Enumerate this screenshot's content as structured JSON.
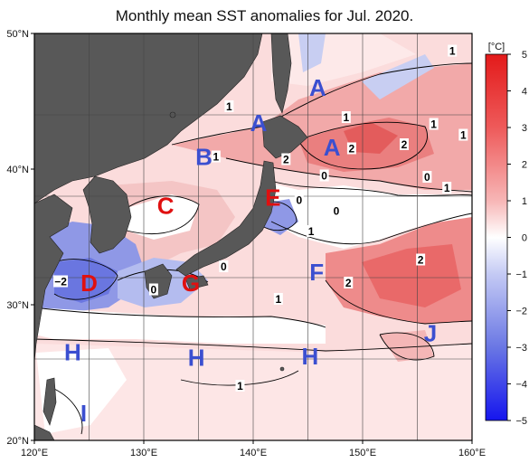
{
  "title": "Monthly mean SST anomalies for Jul. 2020.",
  "colorbar": {
    "unit": "[°C]",
    "ticks": [
      "5",
      "4",
      "3",
      "2",
      "1",
      "0",
      "−1",
      "−2",
      "−3",
      "−4",
      "−5"
    ],
    "values": [
      5,
      4,
      3,
      2,
      1,
      0,
      -1,
      -2,
      -3,
      -4,
      -5
    ],
    "warm_color": "#e02525",
    "cold_color": "#1a1aee"
  },
  "axes": {
    "lon_labels": [
      "120°E",
      "130°E",
      "140°E",
      "150°E",
      "160°E"
    ],
    "lon_values": [
      120,
      130,
      140,
      150,
      160
    ],
    "lat_labels": [
      "50°N",
      "40°N",
      "30°N",
      "20°N"
    ],
    "lat_values": [
      50,
      40,
      30,
      20
    ]
  },
  "regions": [
    {
      "letter": "A",
      "lon": 140.5,
      "lat": 43.4,
      "color": "#3b4fd0"
    },
    {
      "letter": "A",
      "lon": 145.9,
      "lat": 46.0,
      "color": "#3b4fd0"
    },
    {
      "letter": "A",
      "lon": 147.2,
      "lat": 41.6,
      "color": "#3b4fd0"
    },
    {
      "letter": "B",
      "lon": 135.5,
      "lat": 40.9,
      "color": "#3b4fd0"
    },
    {
      "letter": "C",
      "lon": 132.0,
      "lat": 37.3,
      "color": "#e01010"
    },
    {
      "letter": "D",
      "lon": 125.0,
      "lat": 31.6,
      "color": "#e01010"
    },
    {
      "letter": "E",
      "lon": 141.8,
      "lat": 37.9,
      "color": "#e01010"
    },
    {
      "letter": "F",
      "lon": 145.8,
      "lat": 32.4,
      "color": "#3b4fd0"
    },
    {
      "letter": "G",
      "lon": 134.3,
      "lat": 31.6,
      "color": "#e01010"
    },
    {
      "letter": "H",
      "lon": 123.5,
      "lat": 26.5,
      "color": "#3b4fd0"
    },
    {
      "letter": "H",
      "lon": 134.8,
      "lat": 26.1,
      "color": "#3b4fd0"
    },
    {
      "letter": "H",
      "lon": 145.2,
      "lat": 26.2,
      "color": "#3b4fd0"
    },
    {
      "letter": "I",
      "lon": 124.5,
      "lat": 22.0,
      "color": "#3b4fd0"
    },
    {
      "letter": "J",
      "lon": 156.2,
      "lat": 27.9,
      "color": "#3b4fd0"
    }
  ],
  "contour_labels": [
    {
      "text": "1",
      "lon": 158.2,
      "lat": 48.7
    },
    {
      "text": "1",
      "lon": 137.8,
      "lat": 44.6
    },
    {
      "text": "1",
      "lon": 148.5,
      "lat": 43.8
    },
    {
      "text": "1",
      "lon": 156.5,
      "lat": 43.3
    },
    {
      "text": "1",
      "lon": 159.2,
      "lat": 42.5
    },
    {
      "text": "2",
      "lon": 153.8,
      "lat": 41.8
    },
    {
      "text": "2",
      "lon": 149.0,
      "lat": 41.5
    },
    {
      "text": "2",
      "lon": 143.0,
      "lat": 40.7
    },
    {
      "text": "1",
      "lon": 136.6,
      "lat": 40.9
    },
    {
      "text": "0",
      "lon": 146.5,
      "lat": 39.5
    },
    {
      "text": "0",
      "lon": 155.9,
      "lat": 39.4
    },
    {
      "text": "1",
      "lon": 157.7,
      "lat": 38.6
    },
    {
      "text": "0",
      "lon": 144.2,
      "lat": 37.7
    },
    {
      "text": "0",
      "lon": 147.6,
      "lat": 36.9
    },
    {
      "text": "1",
      "lon": 145.3,
      "lat": 35.4
    },
    {
      "text": "2",
      "lon": 155.3,
      "lat": 33.3
    },
    {
      "text": "0",
      "lon": 137.3,
      "lat": 32.8
    },
    {
      "text": "2",
      "lon": 148.7,
      "lat": 31.6
    },
    {
      "text": "−2",
      "lon": 122.4,
      "lat": 31.7
    },
    {
      "text": "0",
      "lon": 130.9,
      "lat": 31.1
    },
    {
      "text": "1",
      "lon": 142.3,
      "lat": 30.4
    },
    {
      "text": "1",
      "lon": 138.8,
      "lat": 24.0
    }
  ]
}
